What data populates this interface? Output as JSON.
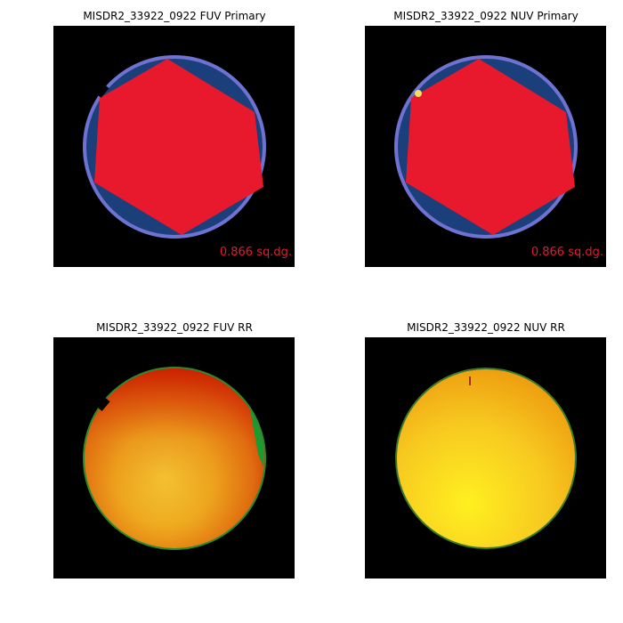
{
  "panels": [
    {
      "title": "MISDR2_33922_0922 FUV Primary",
      "annotation": "0.866 sq.dg."
    },
    {
      "title": "MISDR2_33922_0922 NUV Primary",
      "annotation": "0.866 sq.dg."
    },
    {
      "title": "MISDR2_33922_0922 FUV RR"
    },
    {
      "title": "MISDR2_33922_0922 NUV RR"
    }
  ]
}
